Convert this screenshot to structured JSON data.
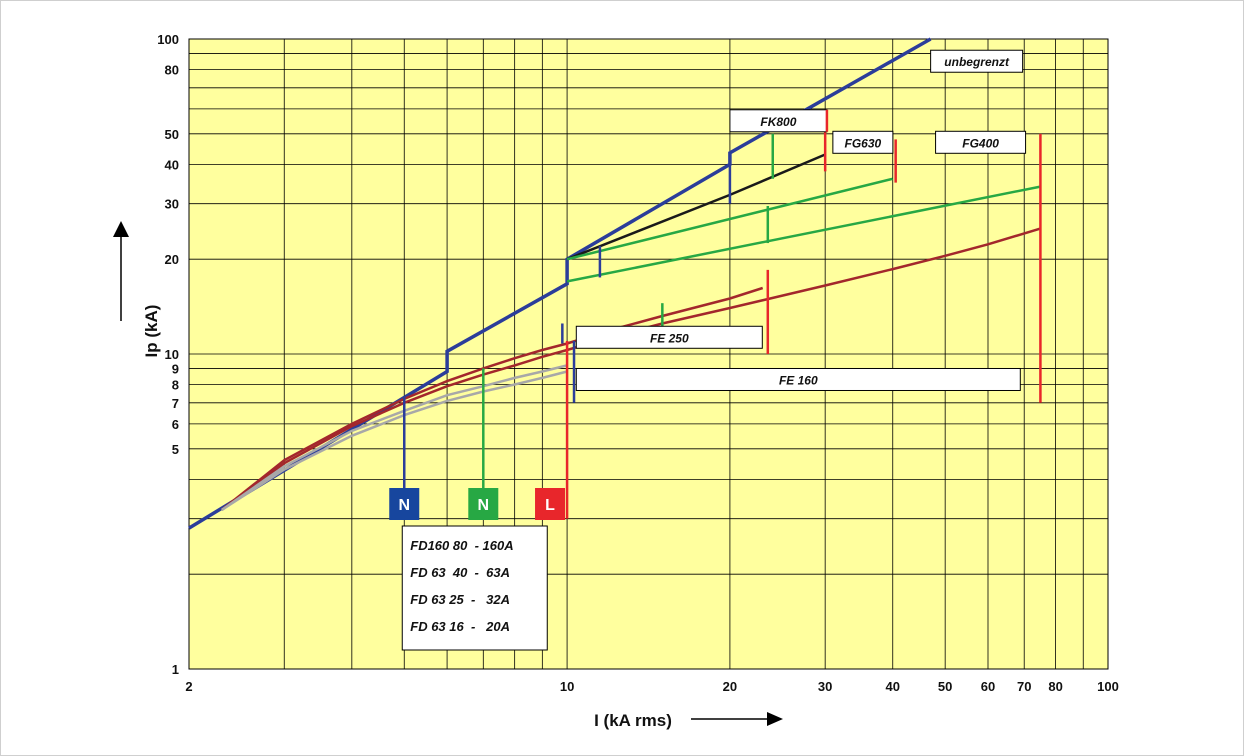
{
  "chart_data": {
    "type": "line",
    "xlabel": "I (kA rms)",
    "ylabel": "Ip (kA)",
    "x_scale": "log",
    "y_scale": "log",
    "xlim": [
      2,
      100
    ],
    "ylim": [
      1,
      100
    ],
    "x_ticks": [
      "2",
      "10",
      "20",
      "30",
      "40",
      "50",
      "60",
      "70",
      "80",
      "100"
    ],
    "y_ticks": [
      "1",
      "5",
      "6",
      "7",
      "8",
      "9",
      "10",
      "20",
      "30",
      "40",
      "50",
      "80",
      "100"
    ],
    "grid": true,
    "colors": {
      "plot_bg": "#ffff9e",
      "grid": "#000000",
      "blue": "#2b3d9a",
      "black": "#1a1a1a",
      "green": "#27a844",
      "darkred": "#a3272c",
      "gray": "#a8a8a8",
      "red": "#e8262b",
      "navy_box": "#17469e"
    },
    "series": [
      {
        "name": "unbegrenzt",
        "color": "blue",
        "x": [
          2,
          6,
          6,
          10,
          10,
          20,
          20,
          47
        ],
        "y": [
          2.8,
          8.8,
          10.2,
          16.7,
          20,
          40,
          43.5,
          100
        ]
      },
      {
        "color": "black",
        "x": [
          10,
          20,
          30
        ],
        "y": [
          20,
          32,
          43
        ]
      },
      {
        "color": "green",
        "x": [
          10,
          40
        ],
        "y": [
          20,
          36
        ]
      },
      {
        "color": "green",
        "x": [
          10,
          75
        ],
        "y": [
          17,
          34
        ]
      },
      {
        "color": "darkred",
        "x": [
          2.3,
          3,
          4,
          5,
          6,
          7,
          8,
          9,
          10,
          12,
          15,
          20,
          23
        ],
        "y": [
          3.2,
          4.6,
          6.0,
          7.2,
          8.2,
          9.0,
          9.7,
          10.3,
          10.8,
          11.9,
          13.2,
          15.0,
          16.2
        ]
      },
      {
        "color": "darkred",
        "x": [
          2.3,
          3,
          4,
          5,
          6,
          7,
          8,
          9,
          10,
          12,
          15,
          20,
          30,
          40,
          50,
          60,
          75
        ],
        "y": [
          3.2,
          4.5,
          5.9,
          7.0,
          7.9,
          8.6,
          9.2,
          9.8,
          10.3,
          11.3,
          12.5,
          14.0,
          16.5,
          18.6,
          20.5,
          22.3,
          25.0
        ]
      },
      {
        "color": "gray",
        "x": [
          2.3,
          3,
          4,
          5,
          6,
          7,
          8,
          9,
          10
        ],
        "y": [
          3.2,
          4.4,
          5.7,
          6.6,
          7.4,
          7.9,
          8.4,
          8.8,
          9.2
        ]
      },
      {
        "color": "gray",
        "x": [
          2.3,
          3,
          4,
          5,
          6,
          7,
          8,
          9,
          10
        ],
        "y": [
          3.2,
          4.3,
          5.5,
          6.4,
          7.1,
          7.6,
          8.0,
          8.4,
          8.8
        ]
      }
    ],
    "markers": [
      {
        "color": "blue",
        "x": 11.5,
        "y_from": 17.5,
        "y_to": 22
      },
      {
        "color": "blue",
        "x": 20,
        "y_from": 30,
        "y_to": 43.5
      },
      {
        "color": "blue",
        "x": 9.8,
        "y_from": 10.8,
        "y_to": 12.5
      },
      {
        "color": "blue",
        "x": 10.3,
        "y_from": 7,
        "y_to": 11
      },
      {
        "color": "blue",
        "x": 5,
        "y_from": 3.0,
        "y_to": 7.3
      },
      {
        "color": "green",
        "x": 24,
        "y_from": 36,
        "y_to": 50
      },
      {
        "color": "green",
        "x": 23.5,
        "y_from": 22.5,
        "y_to": 29.5
      },
      {
        "color": "green",
        "x": 15,
        "y_from": 12,
        "y_to": 14.5
      },
      {
        "color": "green",
        "x": 7,
        "y_from": 3.0,
        "y_to": 9.0
      },
      {
        "color": "red",
        "x": 30,
        "y_from": 38,
        "y_to": 55
      },
      {
        "color": "red",
        "x": 40.5,
        "y_from": 35,
        "y_to": 48
      },
      {
        "color": "red",
        "x": 75,
        "y_from": 7,
        "y_to": 50
      },
      {
        "color": "red",
        "x": 23.5,
        "y_from": 10,
        "y_to": 18.5
      },
      {
        "color": "red",
        "x": 10,
        "y_from": 3.0,
        "y_to": 11
      }
    ],
    "annotations": [
      {
        "text": "unbegrenzt",
        "x": 47,
        "y": 85,
        "border": "black",
        "w": 92
      },
      {
        "text": "FK800",
        "x": 20,
        "y": 55,
        "border": "red",
        "w": 97
      },
      {
        "text": "FG630",
        "x": 31,
        "y": 47,
        "border": "black",
        "w": 60
      },
      {
        "text": "FG400",
        "x": 48,
        "y": 47,
        "border": "black",
        "w": 90
      },
      {
        "text": "FE 250",
        "x": 10.4,
        "y": 11.3,
        "border": "black",
        "w": 186
      },
      {
        "text": "FE 160",
        "x": 10.4,
        "y": 8.3,
        "border": "black",
        "w": 444
      }
    ],
    "letters": [
      {
        "text": "N",
        "color": "navy_box",
        "x": 5.0
      },
      {
        "text": "N",
        "color": "green",
        "x": 7.0
      },
      {
        "text": "L",
        "color": "red",
        "x": 9.3
      }
    ],
    "legend": [
      "FD160 80  - 160A",
      "FD 63  40  -  63A",
      "FD 63 25  -   32A",
      "FD 63 16  -   20A"
    ]
  }
}
